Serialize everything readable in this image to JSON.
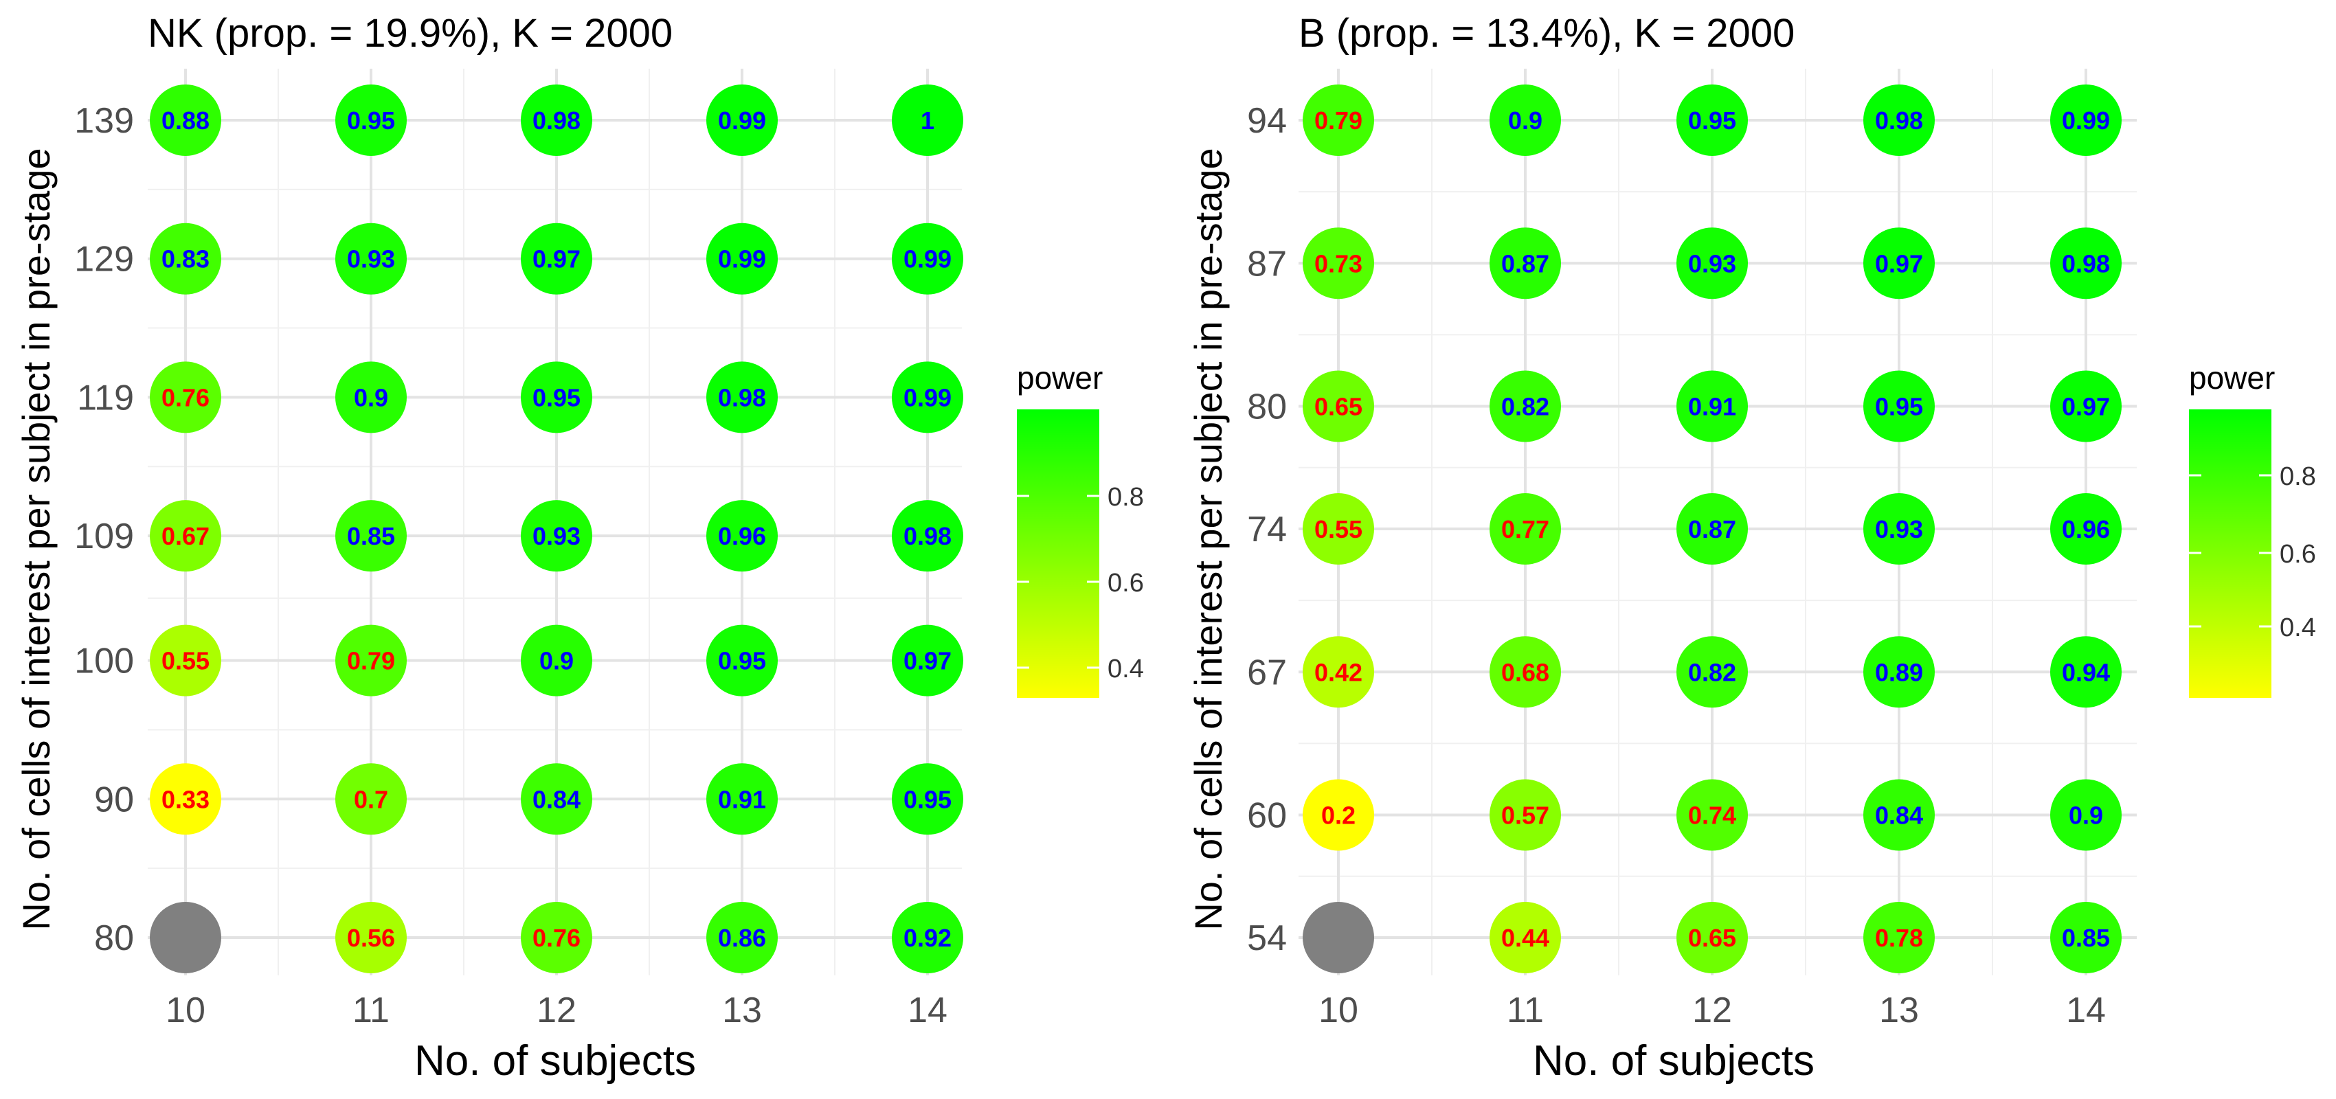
{
  "charts": [
    {
      "title": "NK (prop. = 19.9%), K = 2000",
      "xlabel": "No. of subjects",
      "ylabel": "No. of cells of interest per subject in pre-stage",
      "legend_title": "power",
      "legend_ticks": [
        "0.8",
        "0.6",
        "0.4"
      ]
    },
    {
      "title": "B (prop. = 13.4%), K = 2000",
      "xlabel": "No. of subjects",
      "ylabel": "No. of cells of interest per subject in pre-stage",
      "legend_title": "power",
      "legend_ticks": [
        "0.8",
        "0.6",
        "0.4"
      ]
    }
  ],
  "chart_data": [
    {
      "type": "heatmap",
      "title": "NK (prop. = 19.9%), K = 2000",
      "xlabel": "No. of subjects",
      "ylabel": "No. of cells of interest per subject in pre-stage",
      "x": [
        10,
        11,
        12,
        13,
        14
      ],
      "y": [
        80,
        90,
        100,
        109,
        119,
        129,
        139
      ],
      "values": [
        [
          null,
          0.56,
          0.76,
          0.86,
          0.92
        ],
        [
          0.33,
          0.7,
          0.84,
          0.91,
          0.95
        ],
        [
          0.55,
          0.79,
          0.9,
          0.95,
          0.97
        ],
        [
          0.67,
          0.85,
          0.93,
          0.96,
          0.98
        ],
        [
          0.76,
          0.9,
          0.95,
          0.98,
          0.99
        ],
        [
          0.83,
          0.93,
          0.97,
          0.99,
          0.99
        ],
        [
          0.88,
          0.95,
          0.98,
          0.99,
          1
        ]
      ],
      "color_scale": {
        "low": "#ffff00",
        "high": "#00ff00",
        "min": 0.33,
        "max": 1.0,
        "missing": "#808080"
      },
      "label_colors": {
        "below_threshold": "#ff0000",
        "above_threshold": "#0000ff",
        "threshold": 0.8
      },
      "legend": {
        "title": "power",
        "ticks": [
          0.4,
          0.6,
          0.8
        ],
        "position": "right"
      }
    },
    {
      "type": "heatmap",
      "title": "B (prop. = 13.4%), K = 2000",
      "xlabel": "No. of subjects",
      "ylabel": "No. of cells of interest per subject in pre-stage",
      "x": [
        10,
        11,
        12,
        13,
        14
      ],
      "y": [
        54,
        60,
        67,
        74,
        80,
        87,
        94
      ],
      "values": [
        [
          null,
          0.44,
          0.65,
          0.78,
          0.85
        ],
        [
          0.2,
          0.57,
          0.74,
          0.84,
          0.9
        ],
        [
          0.42,
          0.68,
          0.82,
          0.89,
          0.94
        ],
        [
          0.55,
          0.77,
          0.87,
          0.93,
          0.96
        ],
        [
          0.65,
          0.82,
          0.91,
          0.95,
          0.97
        ],
        [
          0.73,
          0.87,
          0.93,
          0.97,
          0.98
        ],
        [
          0.79,
          0.9,
          0.95,
          0.98,
          0.99
        ]
      ],
      "color_scale": {
        "low": "#ffff00",
        "high": "#00ff00",
        "min": 0.2,
        "max": 0.99,
        "missing": "#808080"
      },
      "label_colors": {
        "below_threshold": "#ff0000",
        "above_threshold": "#0000ff",
        "threshold": 0.8
      },
      "legend": {
        "title": "power",
        "ticks": [
          0.4,
          0.6,
          0.8
        ],
        "position": "right"
      }
    }
  ]
}
